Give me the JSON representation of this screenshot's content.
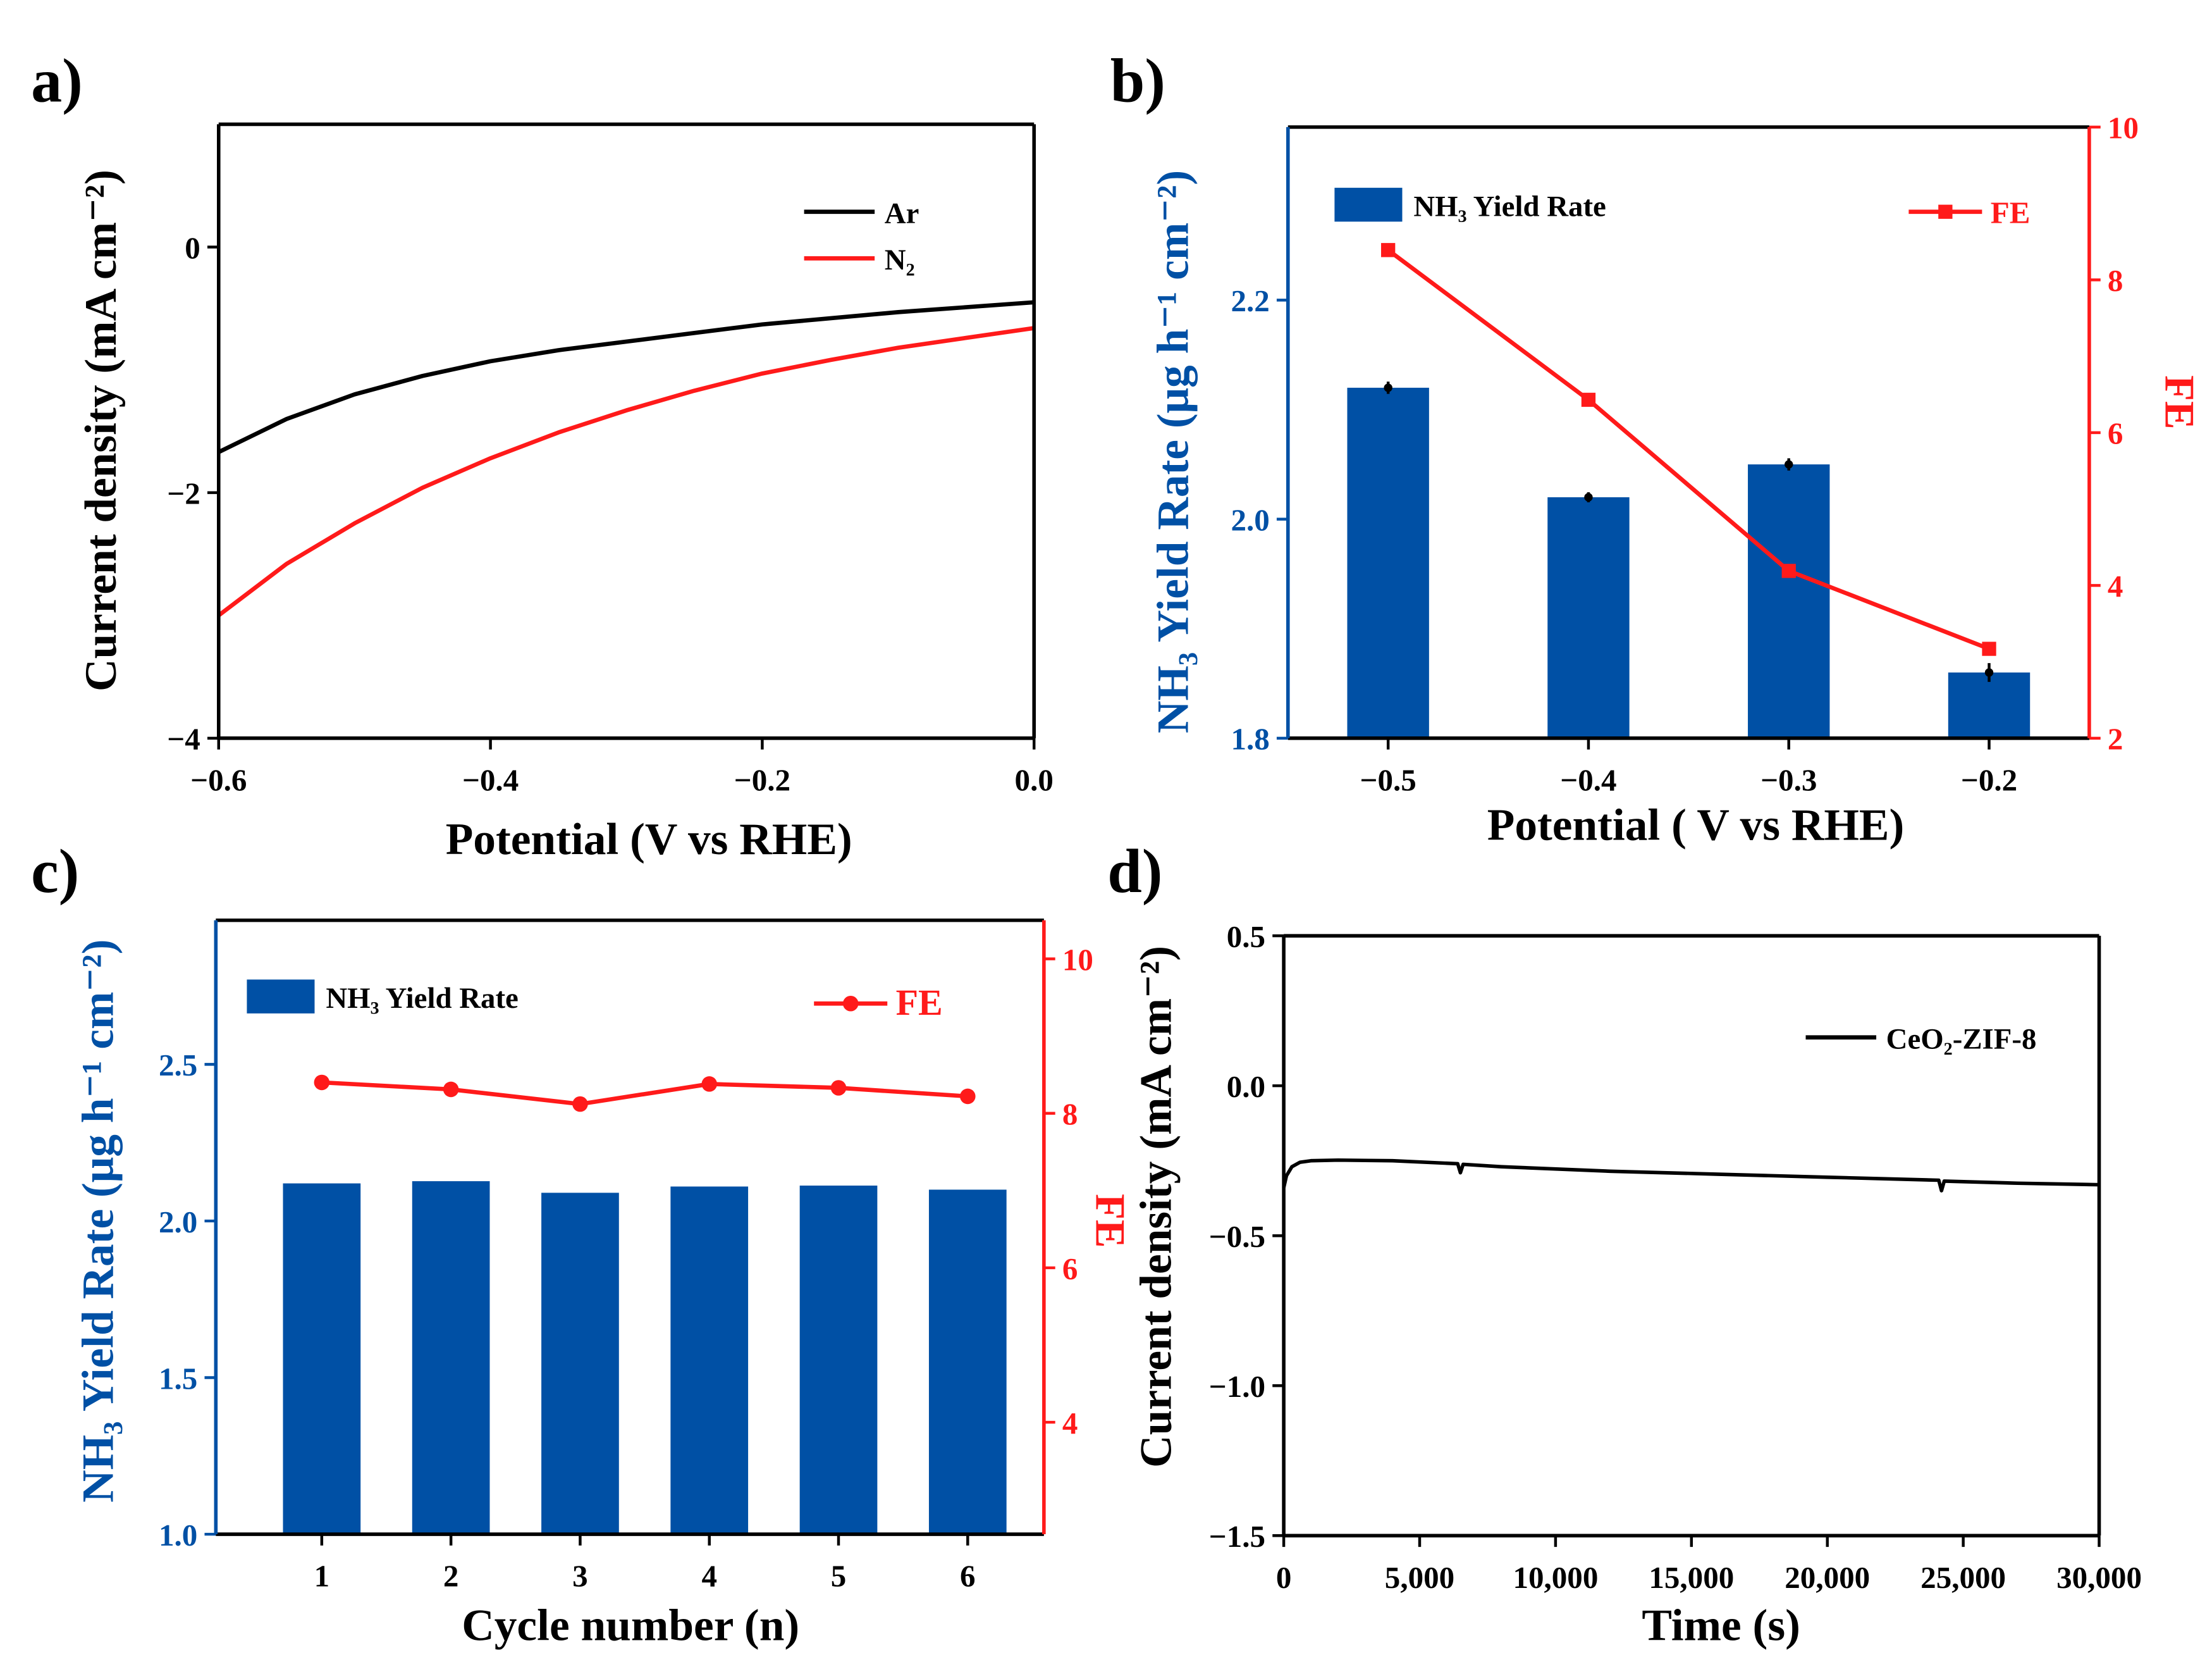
{
  "colors": {
    "blue": "#0050a5",
    "red": "#ff1a1a",
    "black": "#000000"
  },
  "chart_data": [
    {
      "panel": "a)",
      "type": "line",
      "xlabel": "Potential (V vs RHE)",
      "ylabel": "Current density (mA cm⁻²)",
      "xlim": [
        -0.6,
        0.0
      ],
      "ylim": [
        -4,
        1
      ],
      "xticks": [
        -0.6,
        -0.4,
        -0.2,
        0.0
      ],
      "xtick_labels": [
        "−0.6",
        "−0.4",
        "−0.2",
        "0.0"
      ],
      "yticks": [
        -4,
        -2,
        0
      ],
      "ytick_labels": [
        "−4",
        "−2",
        "0"
      ],
      "legend_position": "top-right",
      "x": [
        -0.6,
        -0.55,
        -0.5,
        -0.45,
        -0.4,
        -0.35,
        -0.3,
        -0.25,
        -0.2,
        -0.15,
        -0.1,
        -0.05,
        0.0
      ],
      "series": [
        {
          "name": "Ar",
          "color": "#000000",
          "values": [
            -1.67,
            -1.4,
            -1.2,
            -1.05,
            -0.93,
            -0.84,
            -0.77,
            -0.7,
            -0.63,
            -0.58,
            -0.53,
            -0.49,
            -0.45
          ]
        },
        {
          "name": "N₂",
          "color": "#ff1a1a",
          "values": [
            -3.0,
            -2.58,
            -2.25,
            -1.96,
            -1.72,
            -1.51,
            -1.33,
            -1.17,
            -1.03,
            -0.92,
            -0.82,
            -0.74,
            -0.66
          ]
        }
      ]
    },
    {
      "panel": "b)",
      "type": "bar",
      "xlabel": "Potential ( V vs RHE)",
      "ylabel": "NH₃ Yield Rate (μg h⁻¹ cm⁻²)",
      "y2label": "FE",
      "categories": [
        -0.5,
        -0.4,
        -0.3,
        -0.2
      ],
      "category_labels": [
        "−0.5",
        "−0.4",
        "−0.3",
        "−0.2"
      ],
      "xlim": [
        -0.55,
        -0.15
      ],
      "ylim": [
        1.8,
        2.358
      ],
      "y2lim": [
        2,
        10
      ],
      "yticks": [
        1.8,
        2.0,
        2.2
      ],
      "ytick_labels": [
        "1.8",
        "2.0",
        "2.2"
      ],
      "y2ticks": [
        2,
        4,
        6,
        8,
        10
      ],
      "y2tick_labels": [
        "2",
        "4",
        "6",
        "8",
        "10"
      ],
      "legend_position": "top",
      "series": [
        {
          "name": "NH₃ Yield Rate",
          "kind": "bar",
          "axis": "left",
          "values": [
            2.12,
            2.02,
            2.05,
            1.86
          ],
          "errors": [
            0.003,
            0.002,
            0.003,
            0.006
          ]
        },
        {
          "name": "FE",
          "kind": "line-square",
          "axis": "right",
          "values": [
            8.39,
            6.43,
            4.19,
            3.17
          ]
        }
      ]
    },
    {
      "panel": "c)",
      "type": "bar",
      "xlabel": "Cycle number (n)",
      "ylabel": "NH₃ Yield Rate (μg h⁻¹ cm⁻²)",
      "y2label": "FE",
      "categories": [
        1,
        2,
        3,
        4,
        5,
        6
      ],
      "category_labels": [
        "1",
        "2",
        "3",
        "4",
        "5",
        "6"
      ],
      "xlim": [
        0.18,
        6.59
      ],
      "ylim": [
        1.0,
        2.96
      ],
      "y2lim": [
        2.55,
        10.5
      ],
      "yticks": [
        1.0,
        1.5,
        2.0,
        2.5
      ],
      "ytick_labels": [
        "1.0",
        "1.5",
        "2.0",
        "2.5"
      ],
      "y2ticks": [
        4,
        6,
        8,
        10
      ],
      "y2tick_labels": [
        "4",
        "6",
        "8",
        "10"
      ],
      "legend_position": "top",
      "series": [
        {
          "name": "NH₃ Yield Rate",
          "kind": "bar",
          "axis": "left",
          "values": [
            2.12,
            2.127,
            2.09,
            2.11,
            2.113,
            2.1
          ]
        },
        {
          "name": "FE",
          "kind": "line-circle",
          "axis": "right",
          "values": [
            8.4,
            8.31,
            8.12,
            8.38,
            8.33,
            8.22
          ]
        }
      ]
    },
    {
      "panel": "d)",
      "type": "line",
      "xlabel": "Time (s)",
      "ylabel": "Current density (mA cm⁻²)",
      "xlim": [
        0,
        30000
      ],
      "ylim": [
        -1.5,
        0.5
      ],
      "xticks": [
        0,
        5000,
        10000,
        15000,
        20000,
        25000,
        30000
      ],
      "xtick_labels": [
        "0",
        "5,000",
        "10,000",
        "15,000",
        "20,000",
        "25,000",
        "30,000"
      ],
      "yticks": [
        -1.5,
        -1.0,
        -0.5,
        0.0,
        0.5
      ],
      "ytick_labels": [
        "−1.5",
        "−1.0",
        "−0.5",
        "0.0",
        "0.5"
      ],
      "legend_position": "top-right",
      "x": [
        0,
        100,
        300,
        600,
        1000,
        2000,
        4000,
        6400,
        6500,
        6600,
        8000,
        12000,
        16000,
        20000,
        24100,
        24200,
        24300,
        27000,
        30000
      ],
      "series": [
        {
          "name": "CeO₂-ZIF-8",
          "color": "#000000",
          "values": [
            -0.34,
            -0.3,
            -0.27,
            -0.255,
            -0.25,
            -0.248,
            -0.25,
            -0.26,
            -0.29,
            -0.262,
            -0.27,
            -0.285,
            -0.295,
            -0.305,
            -0.315,
            -0.35,
            -0.318,
            -0.325,
            -0.33
          ]
        }
      ]
    }
  ]
}
